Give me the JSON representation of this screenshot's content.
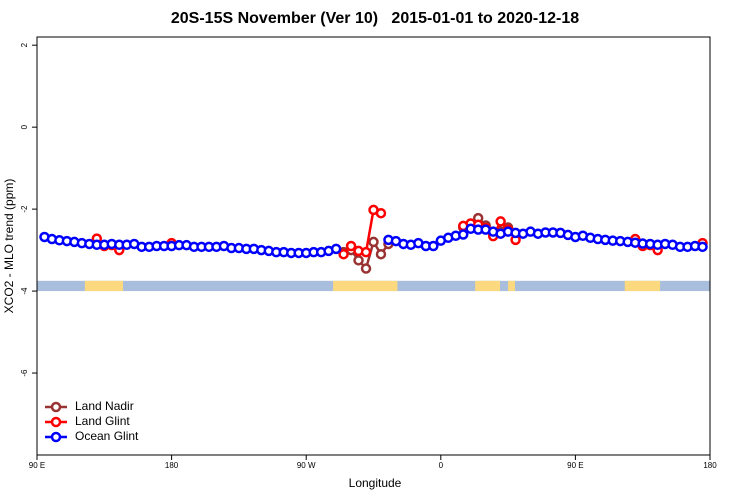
{
  "chart_data": {
    "type": "line",
    "title": "20S-15S November (Ver 10)   2015-01-01 to 2020-12-18",
    "x_label": "Longitude",
    "y_label": "XCO2 - MLO trend (ppm)",
    "xlim": [
      90,
      540
    ],
    "ylim": [
      -8,
      2.2
    ],
    "xticks": [
      {
        "value": 90,
        "label": "90 E"
      },
      {
        "value": 180,
        "label": "180"
      },
      {
        "value": 270,
        "label": "90 W"
      },
      {
        "value": 360,
        "label": "0"
      },
      {
        "value": 450,
        "label": "90 E"
      },
      {
        "value": 540,
        "label": "180"
      }
    ],
    "yticks": [
      2,
      0,
      -2,
      -4,
      -6
    ],
    "legend_position": "bottom-left",
    "surface_band": {
      "ylim": [
        -4,
        -3.75
      ],
      "ocean_color": "#a9bedc",
      "land_color": "#fcd97f",
      "land": [
        [
          122,
          147.5
        ],
        [
          288,
          331
        ],
        [
          383,
          399.6
        ],
        [
          405,
          409.6
        ],
        [
          483,
          506.6
        ]
      ]
    },
    "series": [
      {
        "name": "Land Nadir",
        "color": "#993333",
        "x": [
          295,
          300,
          305,
          310,
          315,
          320,
          325,
          null,
          375,
          380,
          385,
          390,
          395,
          400,
          405
        ],
        "values": [
          -3.05,
          -3.0,
          -3.25,
          -3.45,
          -2.8,
          -3.1,
          -2.85,
          null,
          -2.45,
          -2.38,
          -2.22,
          -2.4,
          -2.6,
          -2.55,
          -2.45
        ]
      },
      {
        "name": "Land Glint",
        "color": "#ff0000",
        "x": [
          130,
          135,
          140,
          145,
          null,
          180,
          null,
          295,
          300,
          305,
          310,
          315,
          320,
          null,
          375,
          380,
          385,
          390,
          395,
          400,
          405,
          410,
          null,
          490,
          495,
          500,
          505,
          null,
          535
        ],
        "values": [
          -2.72,
          -2.9,
          -2.88,
          -3.0,
          null,
          -2.83,
          null,
          -3.1,
          -2.9,
          -3.02,
          -3.05,
          -2.02,
          -2.1,
          null,
          -2.41,
          -2.35,
          -2.38,
          -2.46,
          -2.66,
          -2.3,
          -2.5,
          -2.75,
          null,
          -2.73,
          -2.9,
          -2.88,
          -3.0,
          null,
          -2.83
        ]
      },
      {
        "name": "Ocean Glint",
        "color": "#0000ff",
        "x": [
          95,
          100,
          105,
          110,
          115,
          120,
          125,
          130,
          135,
          140,
          145,
          150,
          155,
          160,
          165,
          170,
          175,
          180,
          185,
          190,
          195,
          200,
          205,
          210,
          215,
          220,
          225,
          230,
          235,
          240,
          245,
          250,
          255,
          260,
          265,
          270,
          275,
          280,
          285,
          290,
          295,
          300,
          305,
          310,
          315,
          320,
          325,
          330,
          335,
          340,
          345,
          350,
          355,
          360,
          365,
          370,
          375,
          380,
          385,
          390,
          395,
          400,
          405,
          410,
          415,
          420,
          425,
          430,
          435,
          440,
          445,
          450,
          455,
          460,
          465,
          470,
          475,
          480,
          485,
          490,
          495,
          500,
          505,
          510,
          515,
          520,
          525,
          530,
          535
        ],
        "values": [
          -2.68,
          -2.73,
          -2.76,
          -2.78,
          -2.8,
          -2.83,
          -2.85,
          -2.87,
          -2.87,
          -2.85,
          -2.87,
          -2.87,
          -2.85,
          -2.92,
          -2.92,
          -2.9,
          -2.9,
          -2.9,
          -2.88,
          -2.88,
          -2.92,
          -2.92,
          -2.92,
          -2.92,
          -2.9,
          -2.95,
          -2.95,
          -2.97,
          -2.97,
          -3.0,
          -3.02,
          -3.05,
          -3.05,
          -3.07,
          -3.07,
          -3.07,
          -3.05,
          -3.05,
          -3.02,
          -2.97,
          null,
          null,
          null,
          null,
          null,
          null,
          -2.75,
          -2.78,
          -2.85,
          -2.87,
          -2.83,
          -2.9,
          -2.9,
          -2.77,
          -2.7,
          -2.65,
          -2.62,
          -2.48,
          -2.5,
          -2.5,
          -2.55,
          -2.6,
          -2.55,
          -2.58,
          -2.6,
          -2.55,
          -2.6,
          -2.57,
          -2.57,
          -2.58,
          -2.63,
          -2.68,
          -2.65,
          -2.7,
          -2.73,
          -2.75,
          -2.77,
          -2.78,
          -2.8,
          -2.82,
          -2.84,
          -2.85,
          -2.87,
          -2.85,
          -2.87,
          -2.92,
          -2.92,
          -2.9,
          -2.92
        ]
      }
    ]
  }
}
